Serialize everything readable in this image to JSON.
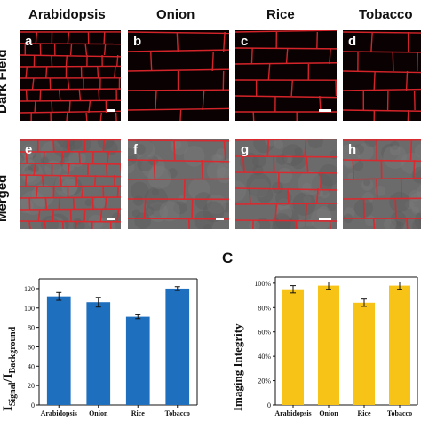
{
  "figure": {
    "columns": [
      "Arabidopsis",
      "Onion",
      "Rice",
      "Tobacco"
    ],
    "rows": [
      "Dark Field",
      "Merged"
    ],
    "panels": [
      "a",
      "b",
      "c",
      "d",
      "e",
      "f",
      "g",
      "h"
    ],
    "section_c_letter": "C",
    "colors": {
      "cell_wall": "#e0262c",
      "dark_bg": "#0a0202",
      "merged_bg": "#6b6b6b",
      "bar_blue": "#1f6fbf",
      "bar_yellow": "#f7c317"
    }
  },
  "chart_data": [
    {
      "type": "bar",
      "categories": [
        "Arabidopsis",
        "Onion",
        "Rice",
        "Tobacco"
      ],
      "values": [
        112,
        106,
        91,
        120
      ],
      "errors": [
        4,
        5,
        2,
        2
      ],
      "ylabel_main": "I",
      "ylabel_sub1": "Signal",
      "ylabel_sep": "/I",
      "ylabel_sub2": "Background",
      "ylim": [
        0,
        130
      ],
      "yticks": [
        "0",
        "20",
        "40",
        "60",
        "80",
        "100",
        "120"
      ],
      "color": "#1f6fbf"
    },
    {
      "type": "bar",
      "categories": [
        "Arabidopsis",
        "Onion",
        "Rice",
        "Tobacco"
      ],
      "values": [
        95,
        98,
        84,
        98
      ],
      "errors": [
        3,
        3,
        3,
        3
      ],
      "ylabel": "Imaging Integrity",
      "ylim": [
        0,
        105
      ],
      "yticks": [
        "0",
        "20%",
        "40%",
        "60%",
        "80%",
        "100%"
      ],
      "color": "#f7c317"
    }
  ]
}
